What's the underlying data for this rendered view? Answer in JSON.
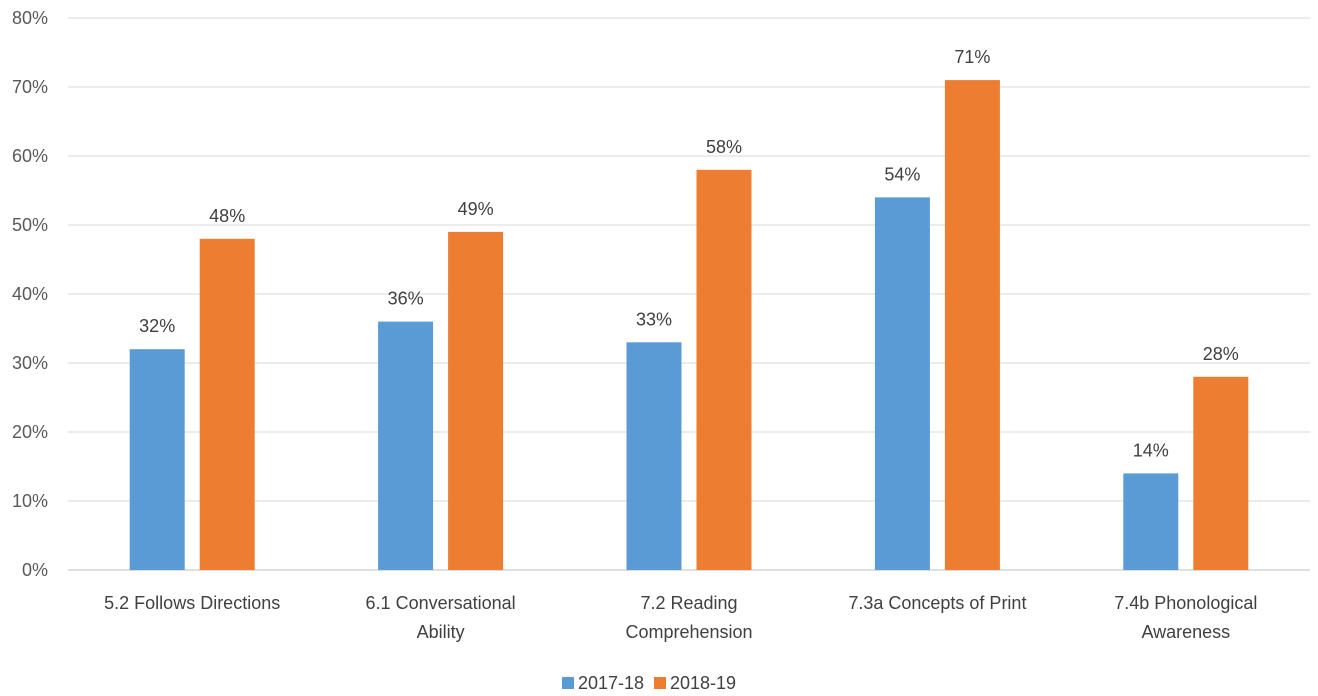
{
  "chart_data": {
    "type": "bar",
    "categories": [
      [
        "5.2 Follows Directions"
      ],
      [
        "6.1 Conversational",
        "Ability"
      ],
      [
        "7.2 Reading",
        "Comprehension"
      ],
      [
        "7.3a Concepts of Print"
      ],
      [
        "7.4b Phonological",
        "Awareness"
      ]
    ],
    "series": [
      {
        "name": "2017-18",
        "color": "#5B9BD5",
        "values": [
          32,
          36,
          33,
          54,
          14
        ],
        "labels": [
          "32%",
          "36%",
          "33%",
          "54%",
          "14%"
        ]
      },
      {
        "name": "2018-19",
        "color": "#ED7D31",
        "values": [
          48,
          49,
          58,
          71,
          28
        ],
        "labels": [
          "48%",
          "49%",
          "58%",
          "71%",
          "28%"
        ]
      }
    ],
    "ylim": [
      0,
      80
    ],
    "yticks": [
      "0%",
      "10%",
      "20%",
      "30%",
      "40%",
      "50%",
      "60%",
      "70%",
      "80%"
    ],
    "grid": true,
    "legend_position": "bottom"
  }
}
